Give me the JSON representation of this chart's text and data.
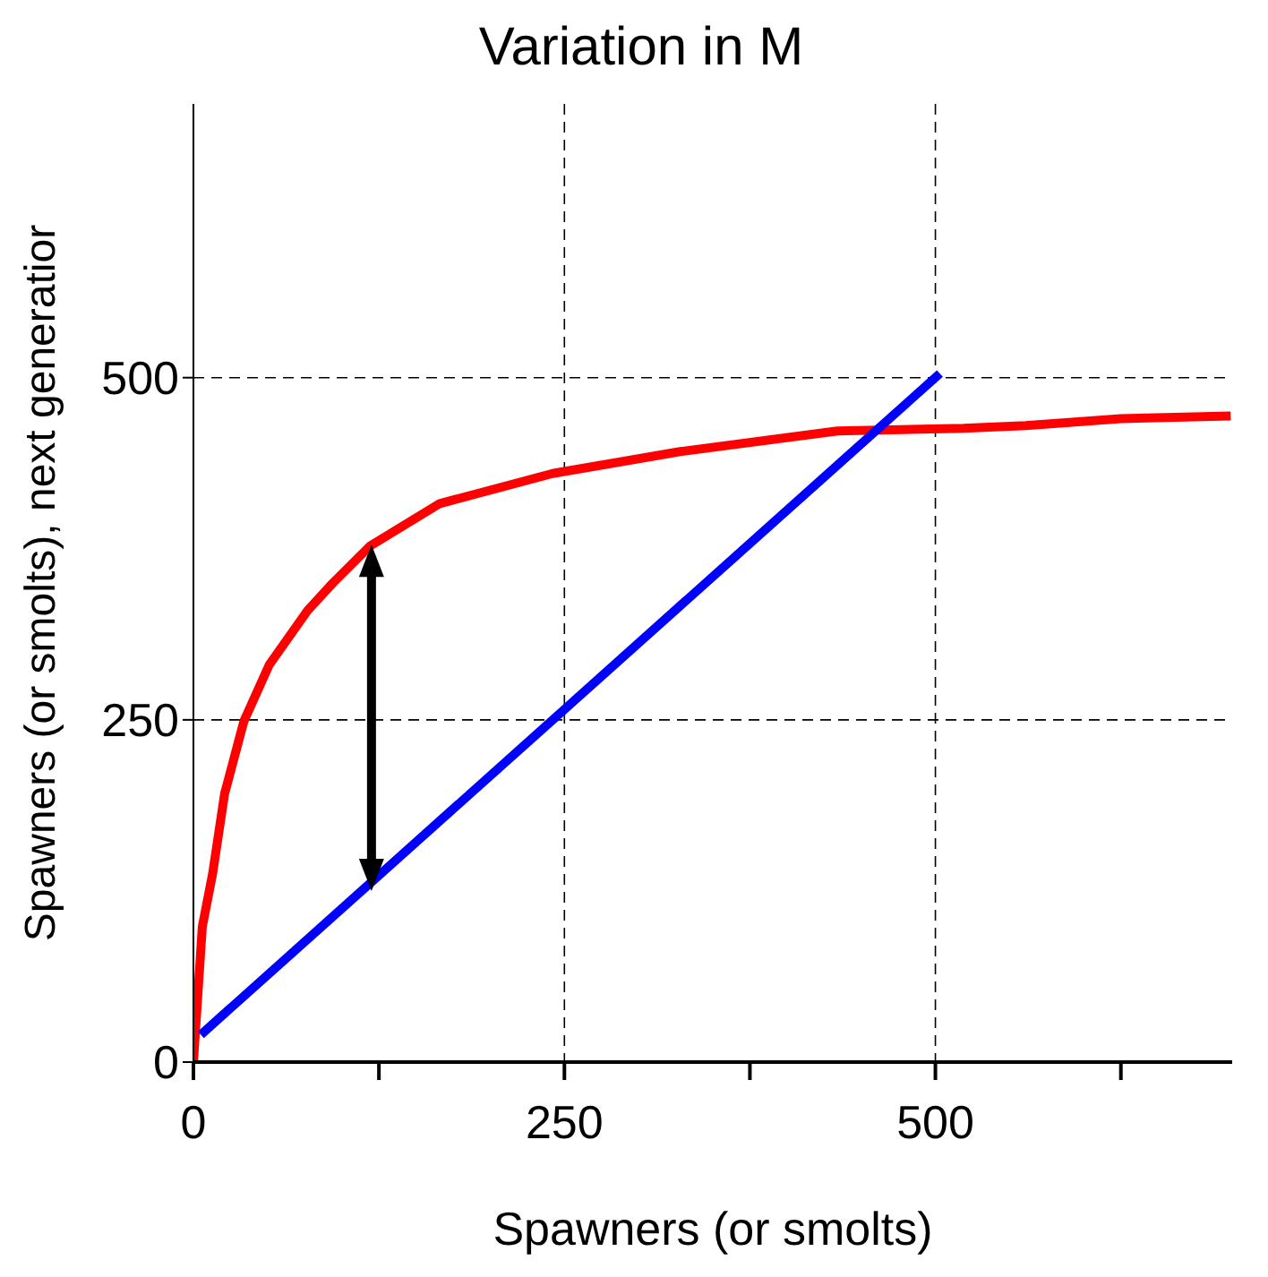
{
  "chart_data": {
    "type": "line",
    "title": "Variation in M",
    "xlabel": "Spawners (or smolts)",
    "ylabel": "Spawners (or smolts), next generatior",
    "xlim": [
      0,
      700
    ],
    "ylim": [
      0,
      700
    ],
    "xticks": [
      0,
      {
        "value": 125,
        "label": null
      },
      250,
      {
        "value": 375,
        "label": null
      },
      500,
      {
        "value": 625,
        "label": null
      }
    ],
    "yticks": [
      0,
      250,
      500
    ],
    "grid": true,
    "marker": "none",
    "line_style": "solid",
    "series": [
      {
        "color": "#ff0000",
        "x": [
          0,
          6,
          13,
          21,
          34,
          51,
          77,
          94,
          119,
          166,
          242,
          328,
          434,
          519,
          561,
          625,
          699
        ],
        "values": [
          0,
          99,
          138,
          196,
          249,
          290,
          330,
          350,
          377,
          408,
          430,
          446,
          461,
          463,
          465,
          470,
          472
        ]
      },
      {
        "color": "#0000ff",
        "x": [
          5,
          503
        ],
        "values": [
          20,
          503
        ]
      }
    ]
  }
}
